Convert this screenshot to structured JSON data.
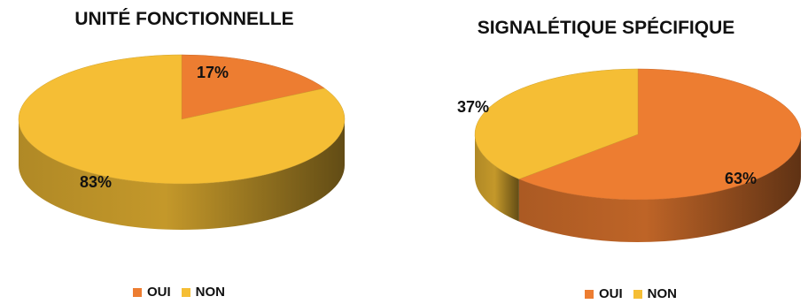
{
  "colors": {
    "oui": "#ED7D31",
    "non": "#F5BE35"
  },
  "chart_data": [
    {
      "type": "pie",
      "title": "UNITÉ FONCTIONNELLE",
      "categories": [
        "OUI",
        "NON"
      ],
      "values": [
        17,
        83
      ],
      "labels": [
        "17%",
        "83%"
      ],
      "legend": {
        "position": "bottom",
        "entries": [
          "OUI",
          "NON"
        ]
      }
    },
    {
      "type": "pie",
      "title": "SIGNALÉTIQUE SPÉCIFIQUE",
      "categories": [
        "OUI",
        "NON"
      ],
      "values": [
        63,
        37
      ],
      "labels": [
        "63%",
        "37%"
      ],
      "legend": {
        "position": "bottom",
        "entries": [
          "OUI",
          "NON"
        ]
      }
    }
  ]
}
